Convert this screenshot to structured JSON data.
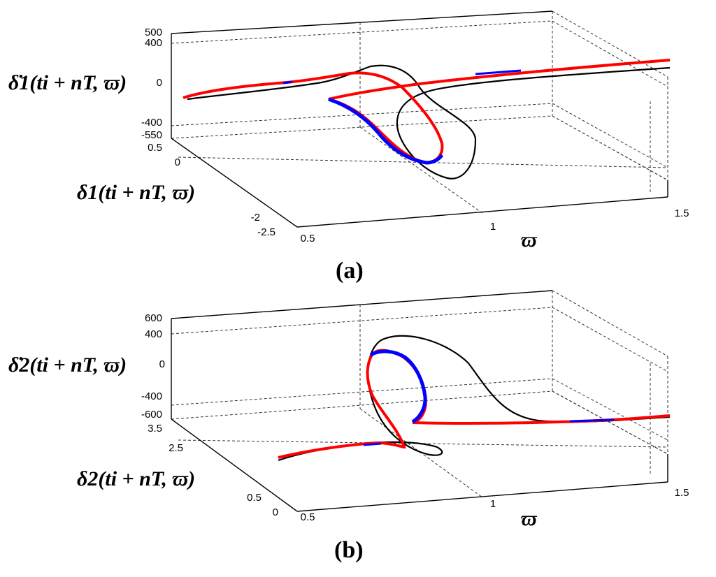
{
  "chart_data": [
    {
      "type": "line",
      "panel_label": "(a)",
      "panel_letter": "a",
      "xlabel": "ϖ",
      "ylabel": "δ1(ti + nT, ϖ)",
      "zlabel": "δ̇1(ti + nT, ϖ)",
      "x_ticks": [
        "0.5",
        "1",
        "1.5"
      ],
      "y_ticks": [
        "0.5",
        "0",
        "-2",
        "-2.5"
      ],
      "z_ticks": [
        "500",
        "400",
        "0",
        "-400",
        "-550"
      ],
      "xlim": [
        0.5,
        1.5
      ],
      "ylim": [
        -2.5,
        0.5
      ],
      "zlim": [
        -550,
        500
      ],
      "grid": true,
      "series_colors": [
        "#000000",
        "#ff0000",
        "#0000ff"
      ]
    },
    {
      "type": "line",
      "panel_label": "(b)",
      "panel_letter": "b",
      "xlabel": "ϖ",
      "ylabel": "δ2(ti + nT, ϖ)",
      "zlabel": "δ̇2(ti + nT, ϖ)",
      "x_ticks": [
        "0.5",
        "1",
        "1.5"
      ],
      "y_ticks": [
        "3.5",
        "2.5",
        "0.5",
        "0"
      ],
      "z_ticks": [
        "600",
        "400",
        "0",
        "-400",
        "-600"
      ],
      "xlim": [
        0.5,
        1.5
      ],
      "ylim": [
        0,
        3.5
      ],
      "zlim": [
        -600,
        600
      ],
      "grid": true,
      "series_colors": [
        "#000000",
        "#ff0000",
        "#0000ff"
      ]
    }
  ]
}
